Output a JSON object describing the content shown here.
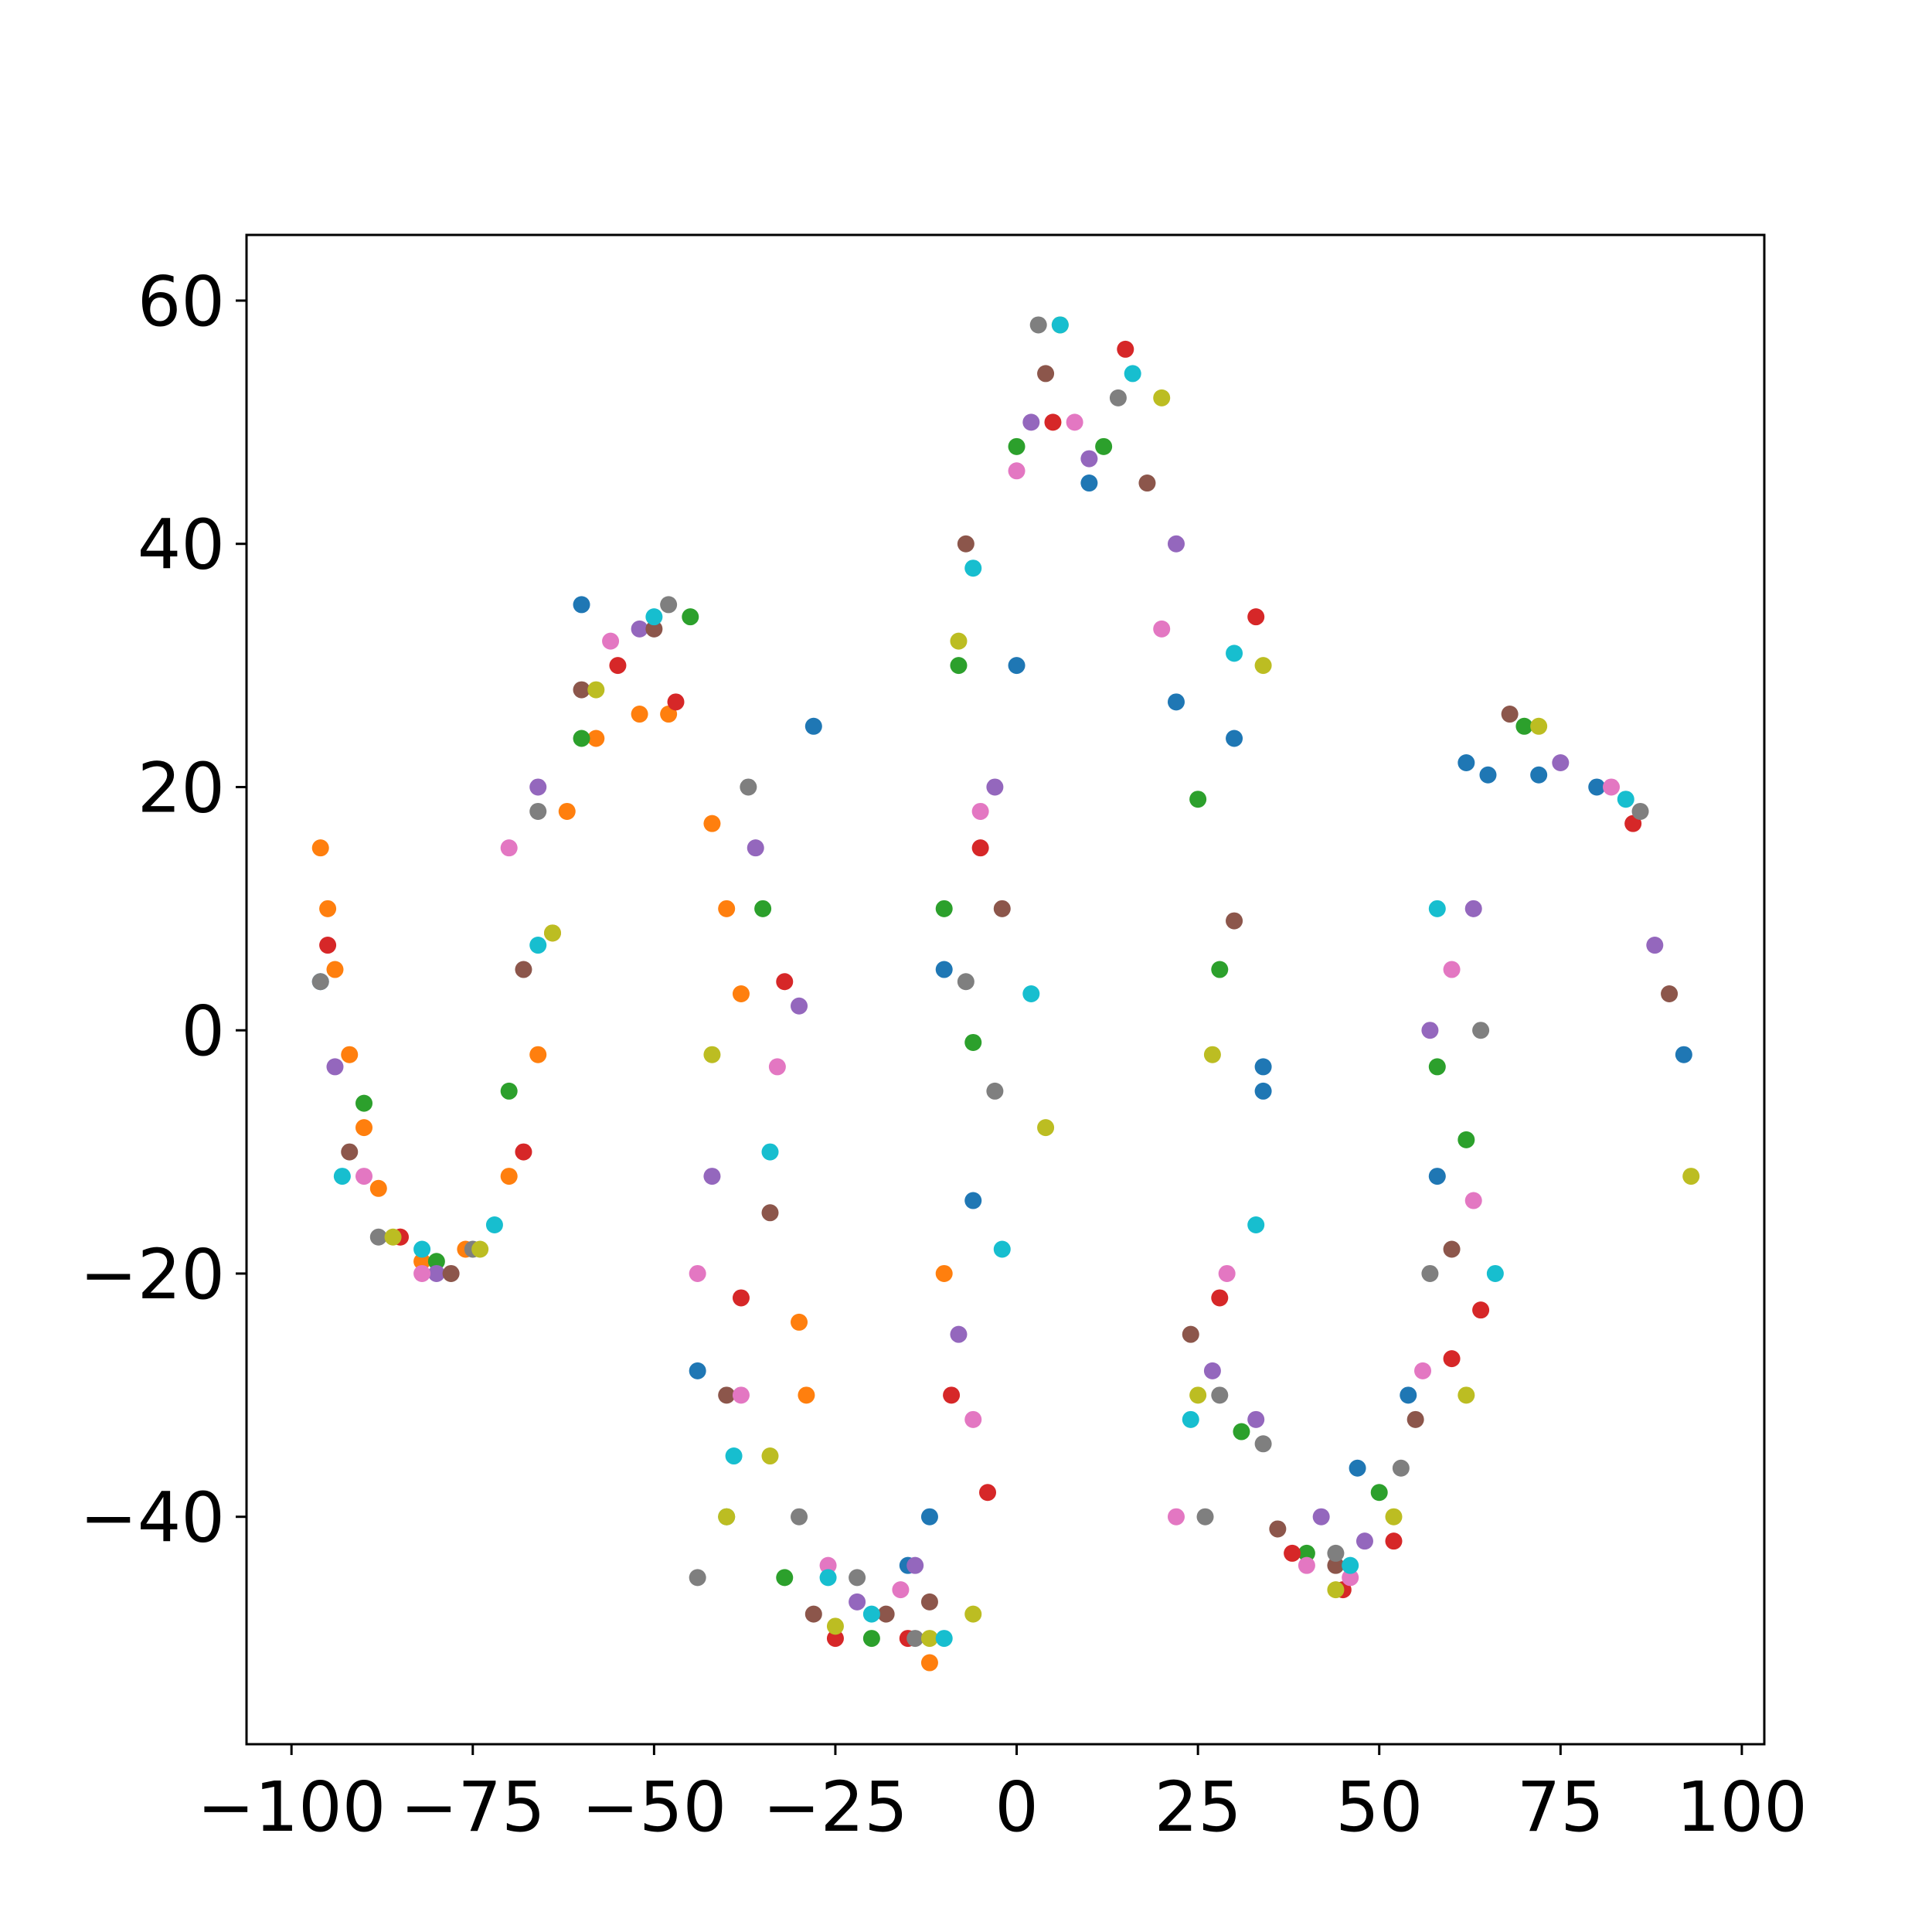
{
  "chart_data": {
    "type": "scatter",
    "xlim": [
      -106.2,
      103.1
    ],
    "ylim": [
      -58.7,
      65.4
    ],
    "xticks": [
      {
        "value": -100,
        "label": "−100"
      },
      {
        "value": -75,
        "label": "−75"
      },
      {
        "value": -50,
        "label": "−50"
      },
      {
        "value": -25,
        "label": "−25"
      },
      0,
      25,
      50,
      75,
      100
    ],
    "yticks": [
      {
        "value": -40,
        "label": "−40"
      },
      {
        "value": -20,
        "label": "−20"
      },
      0,
      20,
      40,
      60
    ],
    "grid": false,
    "series": [
      {
        "color": "#1f77b4",
        "x": [
          -96,
          -60,
          -44,
          -28,
          -15,
          -12,
          -10,
          -6,
          0,
          10,
          22,
          30,
          34,
          34,
          47,
          54,
          58,
          62,
          65,
          72,
          80,
          92
        ],
        "y": [
          4,
          35,
          -28,
          25,
          -44,
          -40,
          5,
          -14,
          30,
          45,
          27,
          24,
          -5,
          -3,
          -36,
          -30,
          -12,
          22,
          21,
          21,
          20,
          -2
        ]
      },
      {
        "color": "#ff7f0e",
        "x": [
          -96,
          -95,
          -94,
          -92,
          -90,
          -88,
          -85,
          -82,
          -76,
          -70,
          -66,
          -64,
          -62,
          -58,
          -52,
          -48,
          -42,
          -40,
          -38,
          -30,
          -29,
          -10,
          -12
        ],
        "y": [
          15,
          10,
          5,
          -2,
          -8,
          -13,
          -17,
          -19,
          -18,
          -12,
          -2,
          8,
          18,
          24,
          26,
          26,
          17,
          10,
          3,
          -24,
          -30,
          -20,
          -52
        ]
      },
      {
        "color": "#2ca02c",
        "x": [
          -90,
          -80,
          -70,
          -60,
          -45,
          -40,
          -35,
          -32,
          -20,
          -10,
          -8,
          -6,
          0,
          12,
          25,
          28,
          31,
          40,
          50,
          58,
          62,
          70
        ],
        "y": [
          -6,
          -19,
          -5,
          24,
          34,
          -40,
          10,
          -45,
          -50,
          10,
          30,
          -1,
          48,
          48,
          19,
          5,
          -33,
          -43,
          -38,
          -3,
          -9,
          25
        ]
      },
      {
        "color": "#d62728",
        "x": [
          -95,
          -85,
          -68,
          -55,
          -47,
          -38,
          -32,
          -25,
          -15,
          -9,
          -5,
          -4,
          5,
          15,
          28,
          33,
          38,
          45,
          52,
          60,
          64,
          85
        ],
        "y": [
          7,
          -17,
          -10,
          30,
          27,
          -22,
          4,
          -50,
          -50,
          -30,
          15,
          -38,
          50,
          56,
          -22,
          34,
          -43,
          -46,
          -42,
          -27,
          -23,
          17
        ]
      },
      {
        "color": "#9467bd",
        "x": [
          -94,
          -80,
          -66,
          -52,
          -42,
          -36,
          -30,
          -22,
          -14,
          -8,
          -3,
          2,
          10,
          22,
          27,
          33,
          42,
          48,
          57,
          63,
          75,
          88
        ],
        "y": [
          -3,
          -20,
          20,
          33,
          -12,
          15,
          2,
          -47,
          -44,
          -25,
          20,
          50,
          47,
          40,
          -28,
          -32,
          -40,
          -42,
          0,
          10,
          22,
          7
        ]
      },
      {
        "color": "#8c564b",
        "x": [
          -92,
          -78,
          -68,
          -60,
          -50,
          -40,
          -34,
          -28,
          -18,
          -12,
          -7,
          -2,
          4,
          18,
          24,
          30,
          36,
          44,
          55,
          60,
          68,
          90
        ],
        "y": [
          -10,
          -20,
          5,
          28,
          33,
          -30,
          -15,
          -48,
          -48,
          -47,
          40,
          10,
          54,
          45,
          -25,
          9,
          -41,
          -44,
          -32,
          -18,
          26,
          3
        ]
      },
      {
        "color": "#e377c2",
        "x": [
          -90,
          -82,
          -70,
          -56,
          -44,
          -38,
          -33,
          -26,
          -16,
          -6,
          -5,
          0,
          8,
          20,
          22,
          29,
          40,
          46,
          56,
          60,
          63,
          82
        ],
        "y": [
          -12,
          -20,
          15,
          32,
          -20,
          -30,
          -3,
          -44,
          -46,
          -32,
          18,
          46,
          50,
          33,
          -40,
          -20,
          -44,
          -45,
          -28,
          5,
          -14,
          20
        ]
      },
      {
        "color": "#7f7f7f",
        "x": [
          -96,
          -88,
          -75,
          -66,
          -48,
          -44,
          -37,
          -30,
          -22,
          -14,
          -7,
          -3,
          3,
          14,
          26,
          28,
          34,
          44,
          53,
          57,
          64,
          86
        ],
        "y": [
          4,
          -17,
          -18,
          18,
          35,
          -45,
          20,
          -40,
          -45,
          -50,
          4,
          -5,
          58,
          52,
          -40,
          -30,
          -34,
          -43,
          -36,
          -20,
          0,
          18
        ]
      },
      {
        "color": "#bcbd22",
        "x": [
          -86,
          -74,
          -64,
          -58,
          -42,
          -40,
          -34,
          -25,
          -12,
          -8,
          -6,
          4,
          6,
          20,
          25,
          27,
          34,
          44,
          52,
          62,
          72,
          93
        ],
        "y": [
          -17,
          -18,
          8,
          28,
          -2,
          -40,
          -35,
          -49,
          -50,
          32,
          -48,
          -8,
          58,
          52,
          -30,
          -2,
          30,
          -46,
          -40,
          -30,
          25,
          -12
        ]
      },
      {
        "color": "#17becf",
        "x": [
          -93,
          -82,
          -72,
          -66,
          -50,
          -39,
          -34,
          -26,
          -20,
          -10,
          -6,
          -2,
          2,
          6,
          16,
          24,
          30,
          33,
          46,
          58,
          66,
          84
        ],
        "y": [
          -12,
          -18,
          -16,
          7,
          34,
          -35,
          -10,
          -45,
          -48,
          -50,
          38,
          -18,
          3,
          58,
          54,
          -32,
          31,
          -16,
          -44,
          10,
          -20,
          19
        ]
      }
    ]
  }
}
